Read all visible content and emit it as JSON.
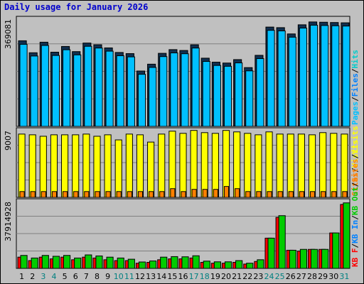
{
  "title": "Daily usage for January 2026",
  "colors": {
    "background": "#c0c0c0",
    "title": "#0000cc",
    "hits": "#00cccc",
    "files": "#0080ff",
    "pages": "#00c0ff",
    "visits": "#ffff00",
    "sites": "#ff8000",
    "kbf": "#ff0000",
    "kbin": "#0080ff",
    "kbout": "#00cc00",
    "weekend_label": "#008080",
    "grid": "#808080"
  },
  "chart_data": [
    {
      "type": "bar",
      "panel": "hits-files-pages",
      "ymax_label": "369081",
      "legend": [
        "Pages",
        "/",
        "Files",
        "/",
        "Hits"
      ],
      "categories": [
        "1",
        "2",
        "3",
        "4",
        "5",
        "6",
        "7",
        "8",
        "9",
        "10",
        "11",
        "12",
        "13",
        "14",
        "15",
        "16",
        "17",
        "18",
        "19",
        "20",
        "21",
        "22",
        "23",
        "24",
        "25",
        "26",
        "27",
        "28",
        "29",
        "30",
        "31"
      ],
      "series": [
        {
          "name": "Hits",
          "values": [
            300000,
            258000,
            295000,
            260000,
            280000,
            262000,
            292000,
            286000,
            275000,
            259000,
            255000,
            194000,
            218000,
            256000,
            269000,
            266000,
            286000,
            239000,
            225000,
            222000,
            234000,
            206000,
            249000,
            348000,
            346000,
            324000,
            356000,
            366000,
            365000,
            364000,
            363000
          ]
        },
        {
          "name": "Files",
          "values": [
            297000,
            256000,
            293000,
            258000,
            278000,
            260000,
            290000,
            284000,
            273000,
            257000,
            253000,
            192000,
            216000,
            254000,
            267000,
            264000,
            284000,
            237000,
            223000,
            220000,
            232000,
            204000,
            247000,
            346000,
            344000,
            322000,
            354000,
            364000,
            363000,
            362000,
            361000
          ]
        },
        {
          "name": "Pages",
          "values": [
            295000,
            254000,
            291000,
            256000,
            276000,
            258000,
            288000,
            282000,
            271000,
            255000,
            251000,
            190000,
            214000,
            252000,
            265000,
            262000,
            282000,
            235000,
            221000,
            218000,
            230000,
            202000,
            245000,
            344000,
            342000,
            320000,
            352000,
            362000,
            361000,
            360000,
            359000
          ]
        }
      ]
    },
    {
      "type": "bar",
      "panel": "visits-sites",
      "ymax_label": "9007",
      "legend": [
        "Sites",
        "/",
        "Visits"
      ],
      "categories": [
        "1",
        "2",
        "3",
        "4",
        "5",
        "6",
        "7",
        "8",
        "9",
        "10",
        "11",
        "12",
        "13",
        "14",
        "15",
        "16",
        "17",
        "18",
        "19",
        "20",
        "21",
        "22",
        "23",
        "24",
        "25",
        "26",
        "27",
        "28",
        "29",
        "30",
        "31"
      ],
      "series": [
        {
          "name": "Visits",
          "values": [
            8700,
            8600,
            8400,
            8600,
            8600,
            8600,
            8700,
            8400,
            8600,
            7900,
            8700,
            8600,
            7600,
            8700,
            9100,
            8800,
            9200,
            8900,
            8800,
            9200,
            9000,
            8800,
            8600,
            9000,
            8700,
            8700,
            8700,
            8600,
            8900,
            8800,
            8700
          ]
        },
        {
          "name": "Sites",
          "values": [
            800,
            800,
            800,
            800,
            800,
            800,
            800,
            800,
            800,
            800,
            800,
            800,
            800,
            800,
            1200,
            800,
            1100,
            1100,
            1100,
            1500,
            1200,
            800,
            800,
            800,
            800,
            800,
            800,
            800,
            800,
            800,
            800
          ]
        }
      ]
    },
    {
      "type": "bar",
      "panel": "kbytes",
      "ymax_label": "37914928",
      "legend": [
        "KB F",
        "/",
        "KB In",
        "/",
        "KB Out",
        "/",
        "Sites",
        "/",
        "Visits"
      ],
      "categories": [
        "1",
        "2",
        "3",
        "4",
        "5",
        "6",
        "7",
        "8",
        "9",
        "10",
        "11",
        "12",
        "13",
        "14",
        "15",
        "16",
        "17",
        "18",
        "19",
        "20",
        "21",
        "22",
        "23",
        "24",
        "25",
        "26",
        "27",
        "28",
        "29",
        "30",
        "31"
      ],
      "series": [
        {
          "name": "KB F",
          "values": [
            6500000,
            4500000,
            6500000,
            5500000,
            6500000,
            5000000,
            6500000,
            6000000,
            5000000,
            4500000,
            4500000,
            3000000,
            3500000,
            5000000,
            5500000,
            5500000,
            6000000,
            3500000,
            3000000,
            3000000,
            3500000,
            2500000,
            4000000,
            17500000,
            29500000,
            10500000,
            10000000,
            11000000,
            11000000,
            20500000,
            37000000
          ]
        },
        {
          "name": "KB Out",
          "values": [
            7500000,
            6000000,
            7500000,
            7000000,
            7500000,
            6000000,
            7800000,
            7200000,
            6500000,
            6000000,
            5300000,
            3700000,
            4300000,
            6500000,
            6800000,
            6700000,
            7300000,
            4200000,
            3800000,
            3800000,
            4500000,
            3000000,
            5000000,
            17500000,
            30500000,
            10500000,
            11000000,
            11000000,
            11000000,
            20500000,
            37900000
          ]
        }
      ]
    }
  ]
}
